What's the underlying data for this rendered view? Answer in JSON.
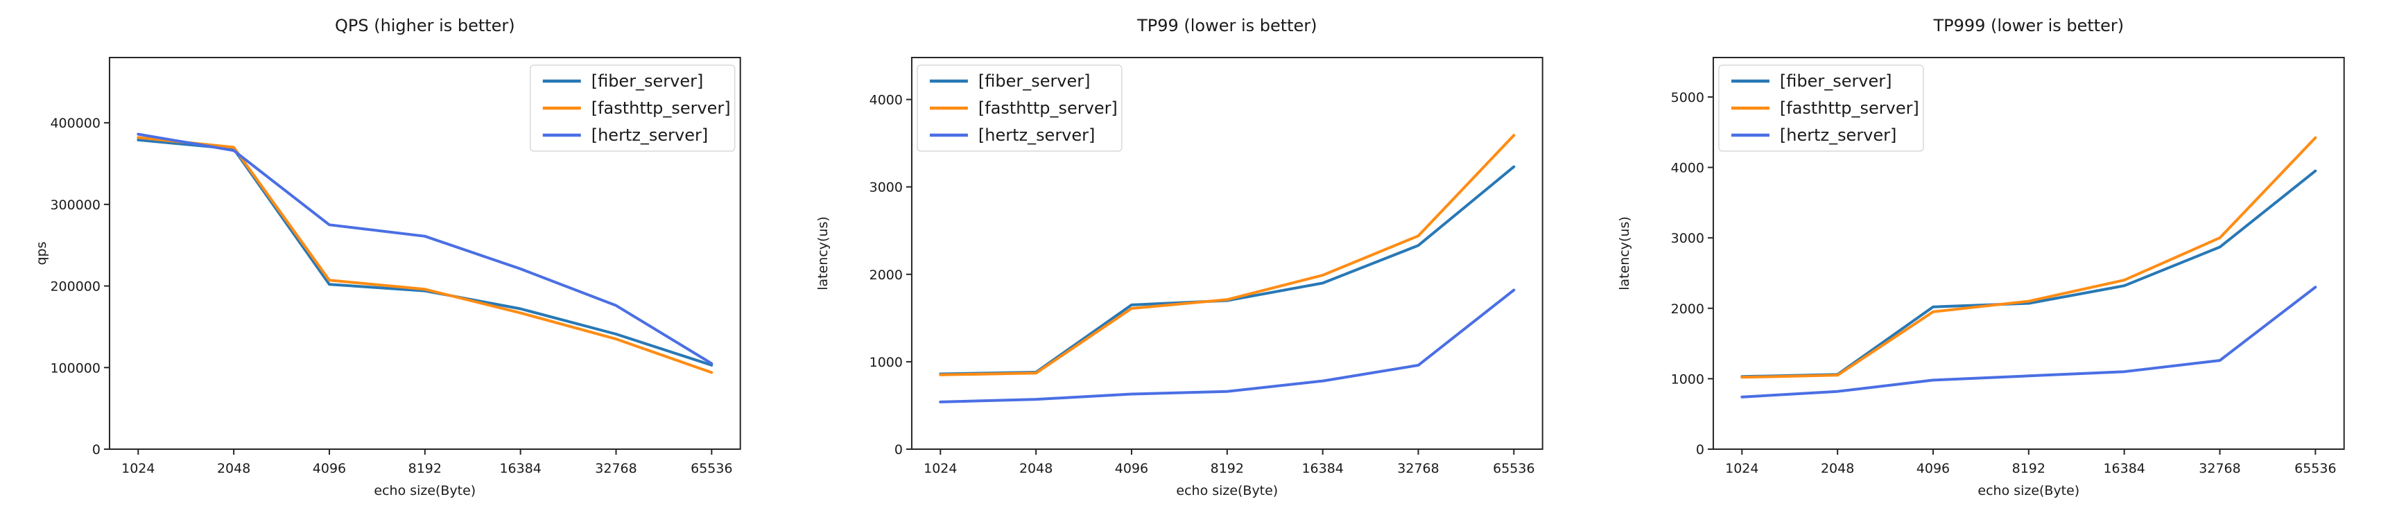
{
  "figure": {
    "background": "#ffffff"
  },
  "colors": {
    "fiber": "#2878b5",
    "fasthttp": "#ff8c14",
    "hertz": "#4a6fe4",
    "axis": "#262626",
    "text": "#1a1a1a",
    "legend_border": "#d9d9d9",
    "legend_fill": "#ffffff"
  },
  "chart_data": [
    {
      "type": "line",
      "title": "QPS (higher is better)",
      "xlabel": "echo size(Byte)",
      "ylabel": "qps",
      "categories": [
        "1024",
        "2048",
        "4096",
        "8192",
        "16384",
        "32768",
        "65536"
      ],
      "yticks": [
        0,
        100000,
        200000,
        300000,
        400000
      ],
      "ylim": [
        0,
        480000
      ],
      "grid": false,
      "legend_position": "top-right",
      "series": [
        {
          "name": "[fiber_server]",
          "color_key": "fiber",
          "values": [
            379000,
            368000,
            202000,
            194000,
            172000,
            141000,
            103000
          ]
        },
        {
          "name": "[fasthttp_server]",
          "color_key": "fasthttp",
          "values": [
            382000,
            370000,
            207000,
            196000,
            167000,
            135000,
            94000
          ]
        },
        {
          "name": "[hertz_server]",
          "color_key": "hertz",
          "values": [
            386000,
            366000,
            275000,
            261000,
            221000,
            176000,
            105000
          ]
        }
      ]
    },
    {
      "type": "line",
      "title": "TP99 (lower is better)",
      "xlabel": "echo size(Byte)",
      "ylabel": "latency(us)",
      "categories": [
        "1024",
        "2048",
        "4096",
        "8192",
        "16384",
        "32768",
        "65536"
      ],
      "yticks": [
        0,
        1000,
        2000,
        3000,
        4000
      ],
      "ylim": [
        0,
        4480
      ],
      "grid": false,
      "legend_position": "top-left",
      "series": [
        {
          "name": "[fiber_server]",
          "color_key": "fiber",
          "values": [
            860,
            880,
            1650,
            1700,
            1900,
            2330,
            3230
          ]
        },
        {
          "name": "[fasthttp_server]",
          "color_key": "fasthttp",
          "values": [
            850,
            870,
            1610,
            1710,
            1990,
            2440,
            3590
          ]
        },
        {
          "name": "[hertz_server]",
          "color_key": "hertz",
          "values": [
            540,
            570,
            630,
            660,
            780,
            960,
            1820
          ]
        }
      ]
    },
    {
      "type": "line",
      "title": "TP999 (lower is better)",
      "xlabel": "echo size(Byte)",
      "ylabel": "latency(us)",
      "categories": [
        "1024",
        "2048",
        "4096",
        "8192",
        "16384",
        "32768",
        "65536"
      ],
      "yticks": [
        0,
        1000,
        2000,
        3000,
        4000,
        5000
      ],
      "ylim": [
        0,
        5560
      ],
      "grid": false,
      "legend_position": "top-left",
      "series": [
        {
          "name": "[fiber_server]",
          "color_key": "fiber",
          "values": [
            1030,
            1060,
            2020,
            2070,
            2320,
            2870,
            3950
          ]
        },
        {
          "name": "[fasthttp_server]",
          "color_key": "fasthttp",
          "values": [
            1020,
            1050,
            1950,
            2100,
            2400,
            3000,
            4420
          ]
        },
        {
          "name": "[hertz_server]",
          "color_key": "hertz",
          "values": [
            740,
            820,
            980,
            1040,
            1100,
            1260,
            2300
          ]
        }
      ]
    }
  ]
}
